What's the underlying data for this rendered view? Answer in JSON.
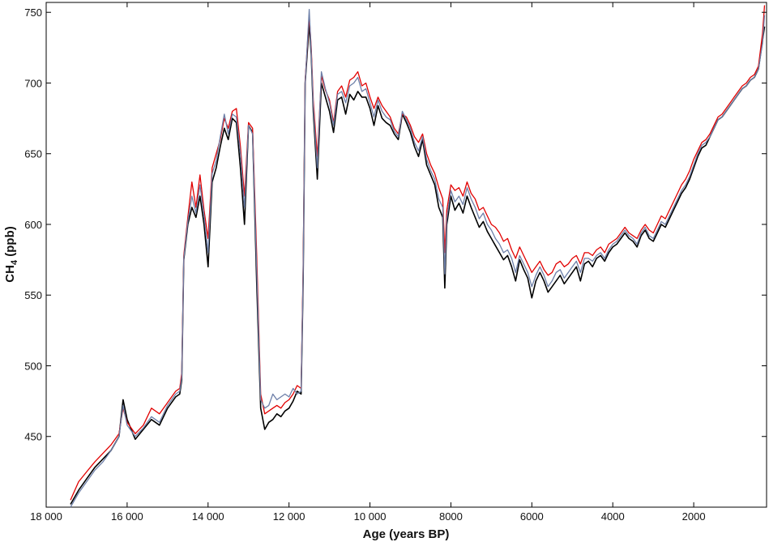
{
  "chart_data": {
    "type": "line",
    "title": "",
    "xlabel": "Age (years BP)",
    "ylabel": {
      "prefix": "CH",
      "subscript": "4",
      "suffix": " (ppb)"
    },
    "xlim": [
      18000,
      200
    ],
    "ylim": [
      400,
      757
    ],
    "x_reversed": true,
    "grid": false,
    "legend": "none",
    "xticks": [
      18000,
      16000,
      14000,
      12000,
      10000,
      8000,
      6000,
      4000,
      2000
    ],
    "xtick_labels": [
      "18 000",
      "16 000",
      "14 000",
      "12 000",
      "10 000",
      "8000",
      "6000",
      "4000",
      "2000"
    ],
    "yticks": [
      450,
      500,
      550,
      600,
      650,
      700,
      750
    ],
    "ytick_labels": [
      "450",
      "500",
      "550",
      "600",
      "650",
      "700",
      "750"
    ],
    "series": [
      {
        "color": "#000000",
        "x": [
          17400,
          17200,
          17000,
          16800,
          16600,
          16400,
          16200,
          16100,
          16000,
          15800,
          15600,
          15400,
          15200,
          15000,
          14800,
          14700,
          14650,
          14600,
          14500,
          14400,
          14300,
          14200,
          14100,
          14000,
          13900,
          13800,
          13700,
          13600,
          13500,
          13400,
          13300,
          13200,
          13100,
          13000,
          12900,
          12800,
          12700,
          12600,
          12500,
          12400,
          12300,
          12200,
          12100,
          12000,
          11900,
          11800,
          11700,
          11650,
          11600,
          11500,
          11450,
          11400,
          11300,
          11200,
          11100,
          11000,
          10900,
          10800,
          10700,
          10600,
          10500,
          10400,
          10300,
          10200,
          10100,
          10000,
          9900,
          9800,
          9700,
          9600,
          9500,
          9400,
          9300,
          9200,
          9100,
          9000,
          8900,
          8800,
          8700,
          8600,
          8500,
          8400,
          8300,
          8200,
          8150,
          8100,
          8000,
          7900,
          7800,
          7700,
          7600,
          7500,
          7400,
          7300,
          7200,
          7100,
          7000,
          6900,
          6800,
          6700,
          6600,
          6500,
          6400,
          6300,
          6200,
          6100,
          6000,
          5900,
          5800,
          5700,
          5600,
          5500,
          5400,
          5300,
          5200,
          5100,
          5000,
          4900,
          4800,
          4700,
          4600,
          4500,
          4400,
          4300,
          4200,
          4100,
          4000,
          3900,
          3800,
          3700,
          3600,
          3500,
          3400,
          3300,
          3200,
          3100,
          3000,
          2900,
          2800,
          2700,
          2600,
          2500,
          2400,
          2300,
          2200,
          2100,
          2000,
          1900,
          1800,
          1700,
          1600,
          1500,
          1400,
          1300,
          1200,
          1100,
          1000,
          900,
          800,
          700,
          600,
          500,
          400,
          300,
          250
        ],
        "y": [
          402,
          412,
          420,
          428,
          434,
          440,
          450,
          476,
          462,
          448,
          455,
          462,
          458,
          470,
          478,
          480,
          490,
          575,
          600,
          612,
          605,
          620,
          600,
          570,
          630,
          640,
          655,
          668,
          660,
          675,
          672,
          640,
          600,
          670,
          665,
          560,
          470,
          455,
          460,
          462,
          466,
          464,
          468,
          470,
          475,
          482,
          480,
          560,
          700,
          742,
          720,
          680,
          632,
          700,
          690,
          680,
          665,
          688,
          690,
          678,
          692,
          688,
          694,
          690,
          690,
          682,
          670,
          684,
          675,
          672,
          670,
          664,
          660,
          678,
          672,
          665,
          655,
          648,
          660,
          642,
          635,
          628,
          612,
          605,
          555,
          600,
          620,
          610,
          615,
          608,
          620,
          612,
          605,
          598,
          602,
          595,
          590,
          585,
          580,
          575,
          578,
          570,
          560,
          575,
          568,
          562,
          548,
          560,
          566,
          560,
          552,
          556,
          560,
          564,
          558,
          562,
          566,
          570,
          560,
          572,
          574,
          570,
          576,
          578,
          574,
          580,
          584,
          586,
          590,
          594,
          590,
          588,
          584,
          592,
          596,
          590,
          588,
          594,
          600,
          598,
          604,
          610,
          616,
          622,
          626,
          632,
          640,
          648,
          654,
          656,
          662,
          668,
          674,
          676,
          680,
          684,
          688,
          692,
          696,
          698,
          702,
          704,
          710,
          730,
          740
        ]
      },
      {
        "color": "#e10000",
        "x": [
          17400,
          17200,
          17000,
          16800,
          16600,
          16400,
          16200,
          16100,
          16000,
          15800,
          15600,
          15400,
          15200,
          15000,
          14800,
          14700,
          14650,
          14600,
          14500,
          14400,
          14300,
          14200,
          14100,
          14000,
          13900,
          13800,
          13700,
          13600,
          13500,
          13400,
          13300,
          13200,
          13100,
          13000,
          12900,
          12800,
          12700,
          12600,
          12500,
          12400,
          12300,
          12200,
          12100,
          12000,
          11900,
          11800,
          11700,
          11650,
          11600,
          11500,
          11450,
          11400,
          11300,
          11200,
          11100,
          11000,
          10900,
          10800,
          10700,
          10600,
          10500,
          10400,
          10300,
          10200,
          10100,
          10000,
          9900,
          9800,
          9700,
          9600,
          9500,
          9400,
          9300,
          9200,
          9100,
          9000,
          8900,
          8800,
          8700,
          8600,
          8500,
          8400,
          8300,
          8200,
          8150,
          8100,
          8000,
          7900,
          7800,
          7700,
          7600,
          7500,
          7400,
          7300,
          7200,
          7100,
          7000,
          6900,
          6800,
          6700,
          6600,
          6500,
          6400,
          6300,
          6200,
          6100,
          6000,
          5900,
          5800,
          5700,
          5600,
          5500,
          5400,
          5300,
          5200,
          5100,
          5000,
          4900,
          4800,
          4700,
          4600,
          4500,
          4400,
          4300,
          4200,
          4100,
          4000,
          3900,
          3800,
          3700,
          3600,
          3500,
          3400,
          3300,
          3200,
          3100,
          3000,
          2900,
          2800,
          2700,
          2600,
          2500,
          2400,
          2300,
          2200,
          2100,
          2000,
          1900,
          1800,
          1700,
          1600,
          1500,
          1400,
          1300,
          1200,
          1100,
          1000,
          900,
          800,
          700,
          600,
          500,
          400,
          300,
          250
        ],
        "y": [
          405,
          418,
          425,
          432,
          438,
          444,
          452,
          470,
          460,
          452,
          458,
          470,
          466,
          474,
          482,
          484,
          495,
          578,
          605,
          630,
          612,
          635,
          610,
          590,
          640,
          650,
          660,
          675,
          668,
          680,
          682,
          655,
          620,
          672,
          668,
          580,
          480,
          466,
          468,
          470,
          472,
          470,
          474,
          476,
          480,
          486,
          484,
          570,
          702,
          748,
          725,
          688,
          648,
          705,
          695,
          688,
          672,
          694,
          698,
          690,
          702,
          704,
          708,
          698,
          700,
          690,
          682,
          690,
          684,
          680,
          676,
          668,
          664,
          678,
          676,
          670,
          662,
          658,
          664,
          650,
          642,
          636,
          626,
          618,
          580,
          610,
          628,
          624,
          626,
          620,
          630,
          622,
          618,
          610,
          612,
          606,
          600,
          598,
          594,
          588,
          590,
          582,
          576,
          584,
          578,
          572,
          566,
          570,
          574,
          568,
          564,
          566,
          572,
          574,
          570,
          572,
          576,
          578,
          572,
          580,
          580,
          578,
          582,
          584,
          580,
          586,
          588,
          590,
          594,
          598,
          594,
          592,
          590,
          596,
          600,
          596,
          594,
          600,
          606,
          604,
          610,
          616,
          622,
          628,
          632,
          638,
          646,
          652,
          658,
          660,
          664,
          670,
          676,
          678,
          682,
          686,
          690,
          694,
          698,
          700,
          704,
          706,
          712,
          735,
          755
        ]
      },
      {
        "color": "#6d7fa8",
        "x": [
          17400,
          17200,
          17000,
          16800,
          16600,
          16400,
          16200,
          16100,
          16000,
          15800,
          15600,
          15400,
          15200,
          15000,
          14800,
          14700,
          14650,
          14600,
          14500,
          14400,
          14300,
          14200,
          14100,
          14000,
          13900,
          13800,
          13700,
          13600,
          13500,
          13400,
          13300,
          13200,
          13100,
          13000,
          12900,
          12800,
          12700,
          12600,
          12500,
          12400,
          12300,
          12200,
          12100,
          12000,
          11900,
          11800,
          11700,
          11650,
          11600,
          11500,
          11450,
          11400,
          11300,
          11200,
          11100,
          11000,
          10900,
          10800,
          10700,
          10600,
          10500,
          10400,
          10300,
          10200,
          10100,
          10000,
          9900,
          9800,
          9700,
          9600,
          9500,
          9400,
          9300,
          9200,
          9100,
          9000,
          8900,
          8800,
          8700,
          8600,
          8500,
          8400,
          8300,
          8200,
          8150,
          8100,
          8000,
          7900,
          7800,
          7700,
          7600,
          7500,
          7400,
          7300,
          7200,
          7100,
          7000,
          6900,
          6800,
          6700,
          6600,
          6500,
          6400,
          6300,
          6200,
          6100,
          6000,
          5900,
          5800,
          5700,
          5600,
          5500,
          5400,
          5300,
          5200,
          5100,
          5000,
          4900,
          4800,
          4700,
          4600,
          4500,
          4400,
          4300,
          4200,
          4100,
          4000,
          3900,
          3800,
          3700,
          3600,
          3500,
          3400,
          3300,
          3200,
          3100,
          3000,
          2900,
          2800,
          2700,
          2600,
          2500,
          2400,
          2300,
          2200,
          2100,
          2000,
          1900,
          1800,
          1700,
          1600,
          1500,
          1400,
          1300,
          1200,
          1100,
          1000,
          900,
          800,
          700,
          600,
          500,
          400,
          300,
          250
        ],
        "y": [
          400,
          410,
          418,
          426,
          432,
          440,
          450,
          472,
          458,
          450,
          456,
          464,
          460,
          472,
          480,
          482,
          492,
          576,
          602,
          620,
          608,
          628,
          606,
          580,
          636,
          645,
          662,
          678,
          664,
          678,
          676,
          650,
          612,
          670,
          664,
          570,
          476,
          470,
          472,
          480,
          476,
          478,
          480,
          478,
          484,
          480,
          482,
          565,
          700,
          752,
          722,
          684,
          640,
          708,
          696,
          686,
          670,
          692,
          694,
          686,
          698,
          700,
          704,
          694,
          696,
          686,
          676,
          688,
          680,
          676,
          674,
          666,
          662,
          680,
          674,
          668,
          658,
          652,
          662,
          646,
          638,
          632,
          618,
          612,
          565,
          604,
          624,
          616,
          620,
          614,
          626,
          618,
          612,
          604,
          608,
          600,
          596,
          590,
          586,
          580,
          582,
          576,
          566,
          578,
          572,
          566,
          556,
          564,
          570,
          564,
          556,
          560,
          566,
          568,
          562,
          566,
          570,
          574,
          566,
          576,
          576,
          574,
          578,
          580,
          576,
          582,
          586,
          588,
          592,
          596,
          592,
          590,
          586,
          594,
          598,
          592,
          590,
          596,
          602,
          600,
          606,
          612,
          618,
          624,
          628,
          634,
          642,
          650,
          656,
          658,
          662,
          668,
          674,
          676,
          680,
          684,
          688,
          692,
          696,
          698,
          702,
          704,
          710,
          728,
          748
        ]
      }
    ]
  }
}
